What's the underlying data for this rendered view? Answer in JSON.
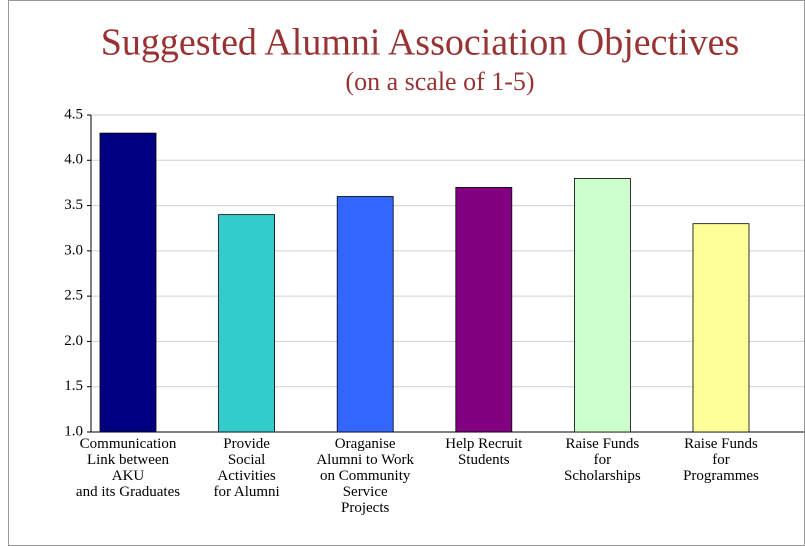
{
  "chart_data": {
    "type": "bar",
    "title": "Suggested Alumni Association Objectives",
    "subtitle": "(on a scale of 1-5)",
    "categories": [
      "Communication\nLink between\nAKU\nand its Graduates",
      "Provide\nSocial\nActivities\nfor Alumni",
      "Oraganise\nAlumni to Work\non Community\nService\nProjects",
      "Help Recruit\nStudents",
      "Raise Funds\nfor\nScholarships",
      "Raise Funds\nfor\nProgrammes"
    ],
    "values": [
      4.3,
      3.4,
      3.6,
      3.7,
      3.8,
      3.3
    ],
    "colors": [
      "#000080",
      "#33cccc",
      "#3366ff",
      "#800080",
      "#ccffcc",
      "#ffff99"
    ],
    "ylim": [
      1,
      4.5
    ],
    "yticks": [
      {
        "value": 1,
        "label": "1.0"
      },
      1.5,
      {
        "value": 2,
        "label": "2.0"
      },
      2.5,
      {
        "value": 3,
        "label": "3.0"
      },
      3.5,
      {
        "value": 4,
        "label": "4.0"
      },
      4.5
    ],
    "grid": true
  }
}
